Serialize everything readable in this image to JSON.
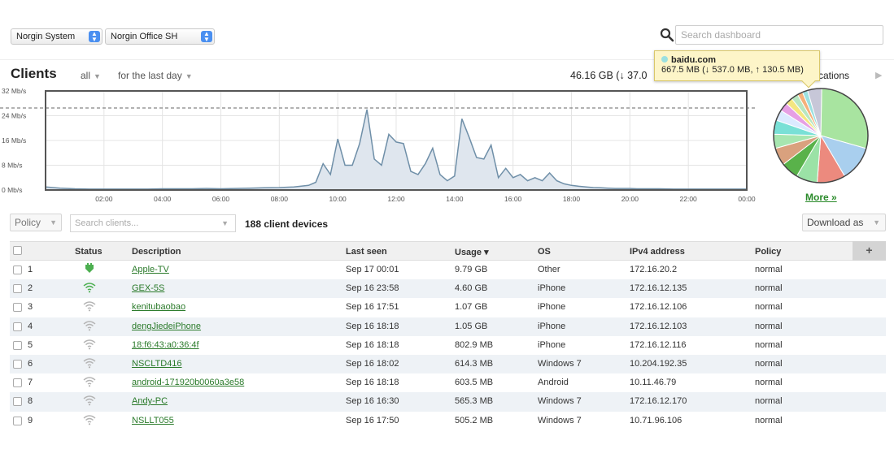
{
  "header": {
    "org_select": "Norgin System",
    "network_select": "Norgin Office SH",
    "search_placeholder": "Search dashboard"
  },
  "clients": {
    "title": "Clients",
    "filter_all": "all",
    "filter_time": "for the last day",
    "total_usage": "46.16 GB (↓ 37.0",
    "apps_label": "cations",
    "more_link": "More »"
  },
  "tooltip": {
    "title": "baidu.com",
    "detail": "667.5 MB (↓ 537.0 MB, ↑ 130.5 MB)"
  },
  "controls": {
    "policy_label": "Policy",
    "search_clients_placeholder": "Search clients...",
    "device_count": "188 client devices",
    "download_label": "Download as"
  },
  "table": {
    "columns": [
      "Status",
      "Description",
      "Last seen",
      "Usage ▾",
      "OS",
      "IPv4 address",
      "Policy"
    ],
    "add_column": "+",
    "rows": [
      {
        "num": "1",
        "status": "wired",
        "description": "Apple-TV",
        "last_seen": "Sep 17 00:01",
        "usage": "9.79 GB",
        "os": "Other",
        "ipv4": "172.16.20.2",
        "policy": "normal"
      },
      {
        "num": "2",
        "status": "wifi-online",
        "description": "GEX-5S",
        "last_seen": "Sep 16 23:58",
        "usage": "4.60 GB",
        "os": "iPhone",
        "ipv4": "172.16.12.135",
        "policy": "normal"
      },
      {
        "num": "3",
        "status": "wifi-offline",
        "description": "kenitubaobao",
        "last_seen": "Sep 16 17:51",
        "usage": "1.07 GB",
        "os": "iPhone",
        "ipv4": "172.16.12.106",
        "policy": "normal"
      },
      {
        "num": "4",
        "status": "wifi-offline",
        "description": "dengJiedeiPhone",
        "last_seen": "Sep 16 18:18",
        "usage": "1.05 GB",
        "os": "iPhone",
        "ipv4": "172.16.12.103",
        "policy": "normal"
      },
      {
        "num": "5",
        "status": "wifi-offline",
        "description": "18:f6:43:a0:36:4f",
        "last_seen": "Sep 16 18:18",
        "usage": "802.9 MB",
        "os": "iPhone",
        "ipv4": "172.16.12.116",
        "policy": "normal"
      },
      {
        "num": "6",
        "status": "wifi-offline",
        "description": "NSCLTD416",
        "last_seen": "Sep 16 18:02",
        "usage": "614.3 MB",
        "os": "Windows 7",
        "ipv4": "10.204.192.35",
        "policy": "normal"
      },
      {
        "num": "7",
        "status": "wifi-offline",
        "description": "android-171920b0060a3e58",
        "last_seen": "Sep 16 18:18",
        "usage": "603.5 MB",
        "os": "Android",
        "ipv4": "10.11.46.79",
        "policy": "normal"
      },
      {
        "num": "8",
        "status": "wifi-offline",
        "description": "Andy-PC",
        "last_seen": "Sep 16 16:30",
        "usage": "565.3 MB",
        "os": "Windows 7",
        "ipv4": "172.16.12.170",
        "policy": "normal"
      },
      {
        "num": "9",
        "status": "wifi-offline",
        "description": "NSLLT055",
        "last_seen": "Sep 16 17:50",
        "usage": "505.2 MB",
        "os": "Windows 7",
        "ipv4": "10.71.96.106",
        "policy": "normal"
      }
    ]
  },
  "colors": {
    "link_green": "#2a7a2a",
    "wired_green": "#4caf50",
    "area_fill": "#dfe6ee",
    "area_stroke": "#6f8fa8"
  },
  "chart_data": {
    "type": "area",
    "ylabel_ticks": [
      "0 Mb/s",
      "8 Mb/s",
      "16 Mb/s",
      "24 Mb/s",
      "32 Mb/s"
    ],
    "x_ticks": [
      "02:00",
      "04:00",
      "06:00",
      "08:00",
      "10:00",
      "12:00",
      "14:00",
      "16:00",
      "18:00",
      "20:00",
      "22:00",
      "00:00"
    ],
    "ylim": [
      0,
      32
    ],
    "x_hours": [
      0,
      0.5,
      1,
      1.5,
      2,
      2.5,
      3,
      3.5,
      4,
      4.5,
      5,
      5.5,
      6,
      6.5,
      7,
      7.5,
      8,
      8.5,
      9,
      9.25,
      9.5,
      9.75,
      10,
      10.25,
      10.5,
      10.75,
      11,
      11.25,
      11.5,
      11.75,
      12,
      12.25,
      12.5,
      12.75,
      13,
      13.25,
      13.5,
      13.75,
      14,
      14.25,
      14.5,
      14.75,
      15,
      15.25,
      15.5,
      15.75,
      16,
      16.25,
      16.5,
      16.75,
      17,
      17.25,
      17.5,
      17.75,
      18,
      18.25,
      18.5,
      18.75,
      19,
      19.25,
      19.5,
      19.75,
      20,
      20.25,
      20.5,
      21,
      21.5,
      22,
      22.5,
      23,
      23.5,
      24
    ],
    "values": [
      1.0,
      0.6,
      0.4,
      0.3,
      0.3,
      0.3,
      0.3,
      0.3,
      0.4,
      0.4,
      0.4,
      0.5,
      0.4,
      0.5,
      0.6,
      0.7,
      0.8,
      1.0,
      1.5,
      2.5,
      8.5,
      5.0,
      16.5,
      8.0,
      8.0,
      15.0,
      26.0,
      10.0,
      8.0,
      18.0,
      15.5,
      15.0,
      6.0,
      5.0,
      8.5,
      13.5,
      5.0,
      3.0,
      4.5,
      23.0,
      17.0,
      10.5,
      10.0,
      14.5,
      4.0,
      7.0,
      4.0,
      5.0,
      3.0,
      4.0,
      3.0,
      5.5,
      3.0,
      2.0,
      1.5,
      1.2,
      1.0,
      0.8,
      0.7,
      0.6,
      0.5,
      0.5,
      0.5,
      0.4,
      0.4,
      0.4,
      0.3,
      0.3,
      0.3,
      0.3,
      0.3,
      0.3
    ]
  },
  "pie_data": {
    "type": "pie",
    "slices": [
      {
        "color": "#a8e4a0",
        "value": 24
      },
      {
        "color": "#a9cfee",
        "value": 10
      },
      {
        "color": "#ec8a7e",
        "value": 8
      },
      {
        "color": "#9be2a6",
        "value": 6
      },
      {
        "color": "#59b24a",
        "value": 5
      },
      {
        "color": "#d9a17e",
        "value": 5
      },
      {
        "color": "#a7e6b0",
        "value": 4
      },
      {
        "color": "#79e0d6",
        "value": 4
      },
      {
        "color": "#dbeaff",
        "value": 3
      },
      {
        "color": "#e6a0e4",
        "value": 2.5
      },
      {
        "color": "#f4e680",
        "value": 2
      },
      {
        "color": "#b8e7c1",
        "value": 2
      },
      {
        "color": "#f6b07a",
        "value": 1.5
      },
      {
        "color": "#9be0e0",
        "value": 1.5
      },
      {
        "color": "#c7c7d8",
        "value": 4
      }
    ]
  }
}
